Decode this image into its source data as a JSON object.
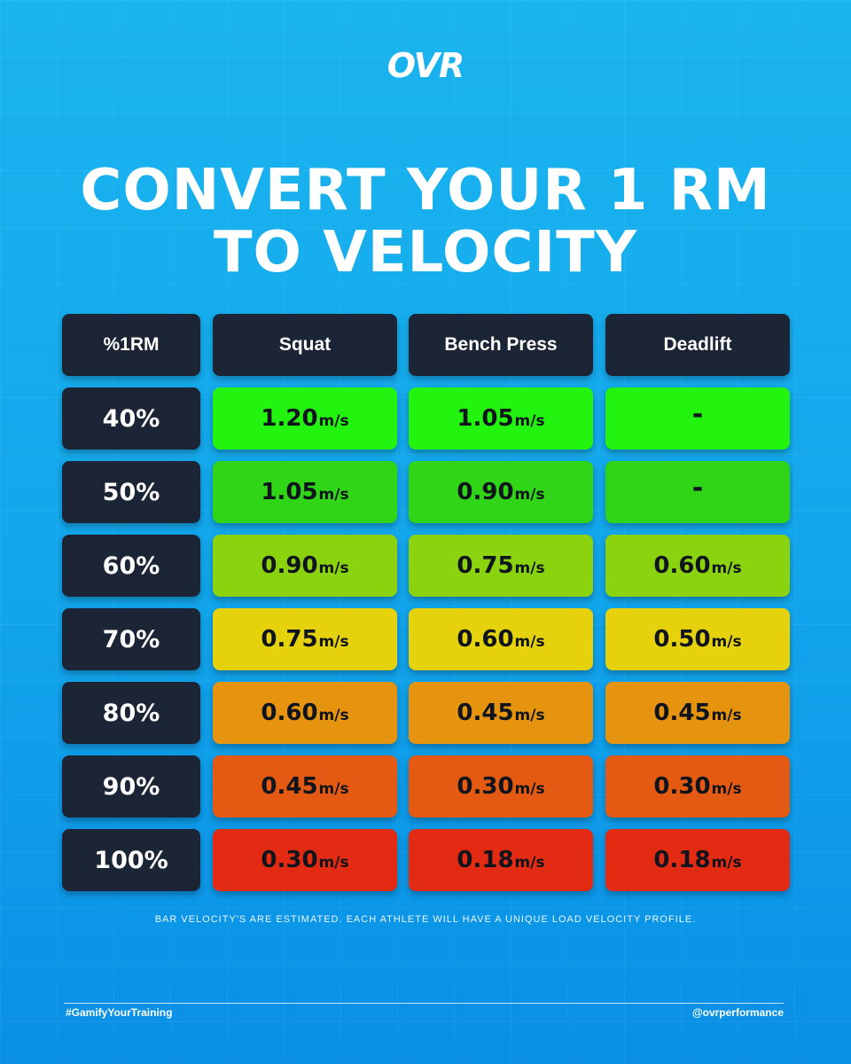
{
  "brand": "OVR",
  "title_lines": [
    "CONVERT YOUR 1 RM",
    "TO VELOCITY"
  ],
  "headers": [
    "%1RM",
    "Squat",
    "Bench Press",
    "Deadlift"
  ],
  "unit": "m/s",
  "rows": [
    {
      "pct": "40%",
      "color": "#23f40f",
      "values": [
        "1.20",
        "1.05",
        "-"
      ]
    },
    {
      "pct": "50%",
      "color": "#2fd516",
      "values": [
        "1.05",
        "0.90",
        "-"
      ]
    },
    {
      "pct": "60%",
      "color": "#8cd30f",
      "values": [
        "0.90",
        "0.75",
        "0.60"
      ]
    },
    {
      "pct": "70%",
      "color": "#e5d20d",
      "values": [
        "0.75",
        "0.60",
        "0.50"
      ]
    },
    {
      "pct": "80%",
      "color": "#e6940f",
      "values": [
        "0.60",
        "0.45",
        "0.45"
      ]
    },
    {
      "pct": "90%",
      "color": "#e55a12",
      "values": [
        "0.45",
        "0.30",
        "0.30"
      ]
    },
    {
      "pct": "100%",
      "color": "#e32a12",
      "values": [
        "0.30",
        "0.18",
        "0.18"
      ]
    }
  ],
  "note": "BAR VELOCITY'S ARE ESTIMATED. EACH ATHLETE WILL HAVE A UNIQUE LOAD VELOCITY PROFILE.",
  "footer": {
    "hashtag": "#GamifyYourTraining",
    "handle": "@ovrperformance"
  },
  "colors": {
    "header_cell": "#1b2536",
    "background": "#15aaee"
  }
}
